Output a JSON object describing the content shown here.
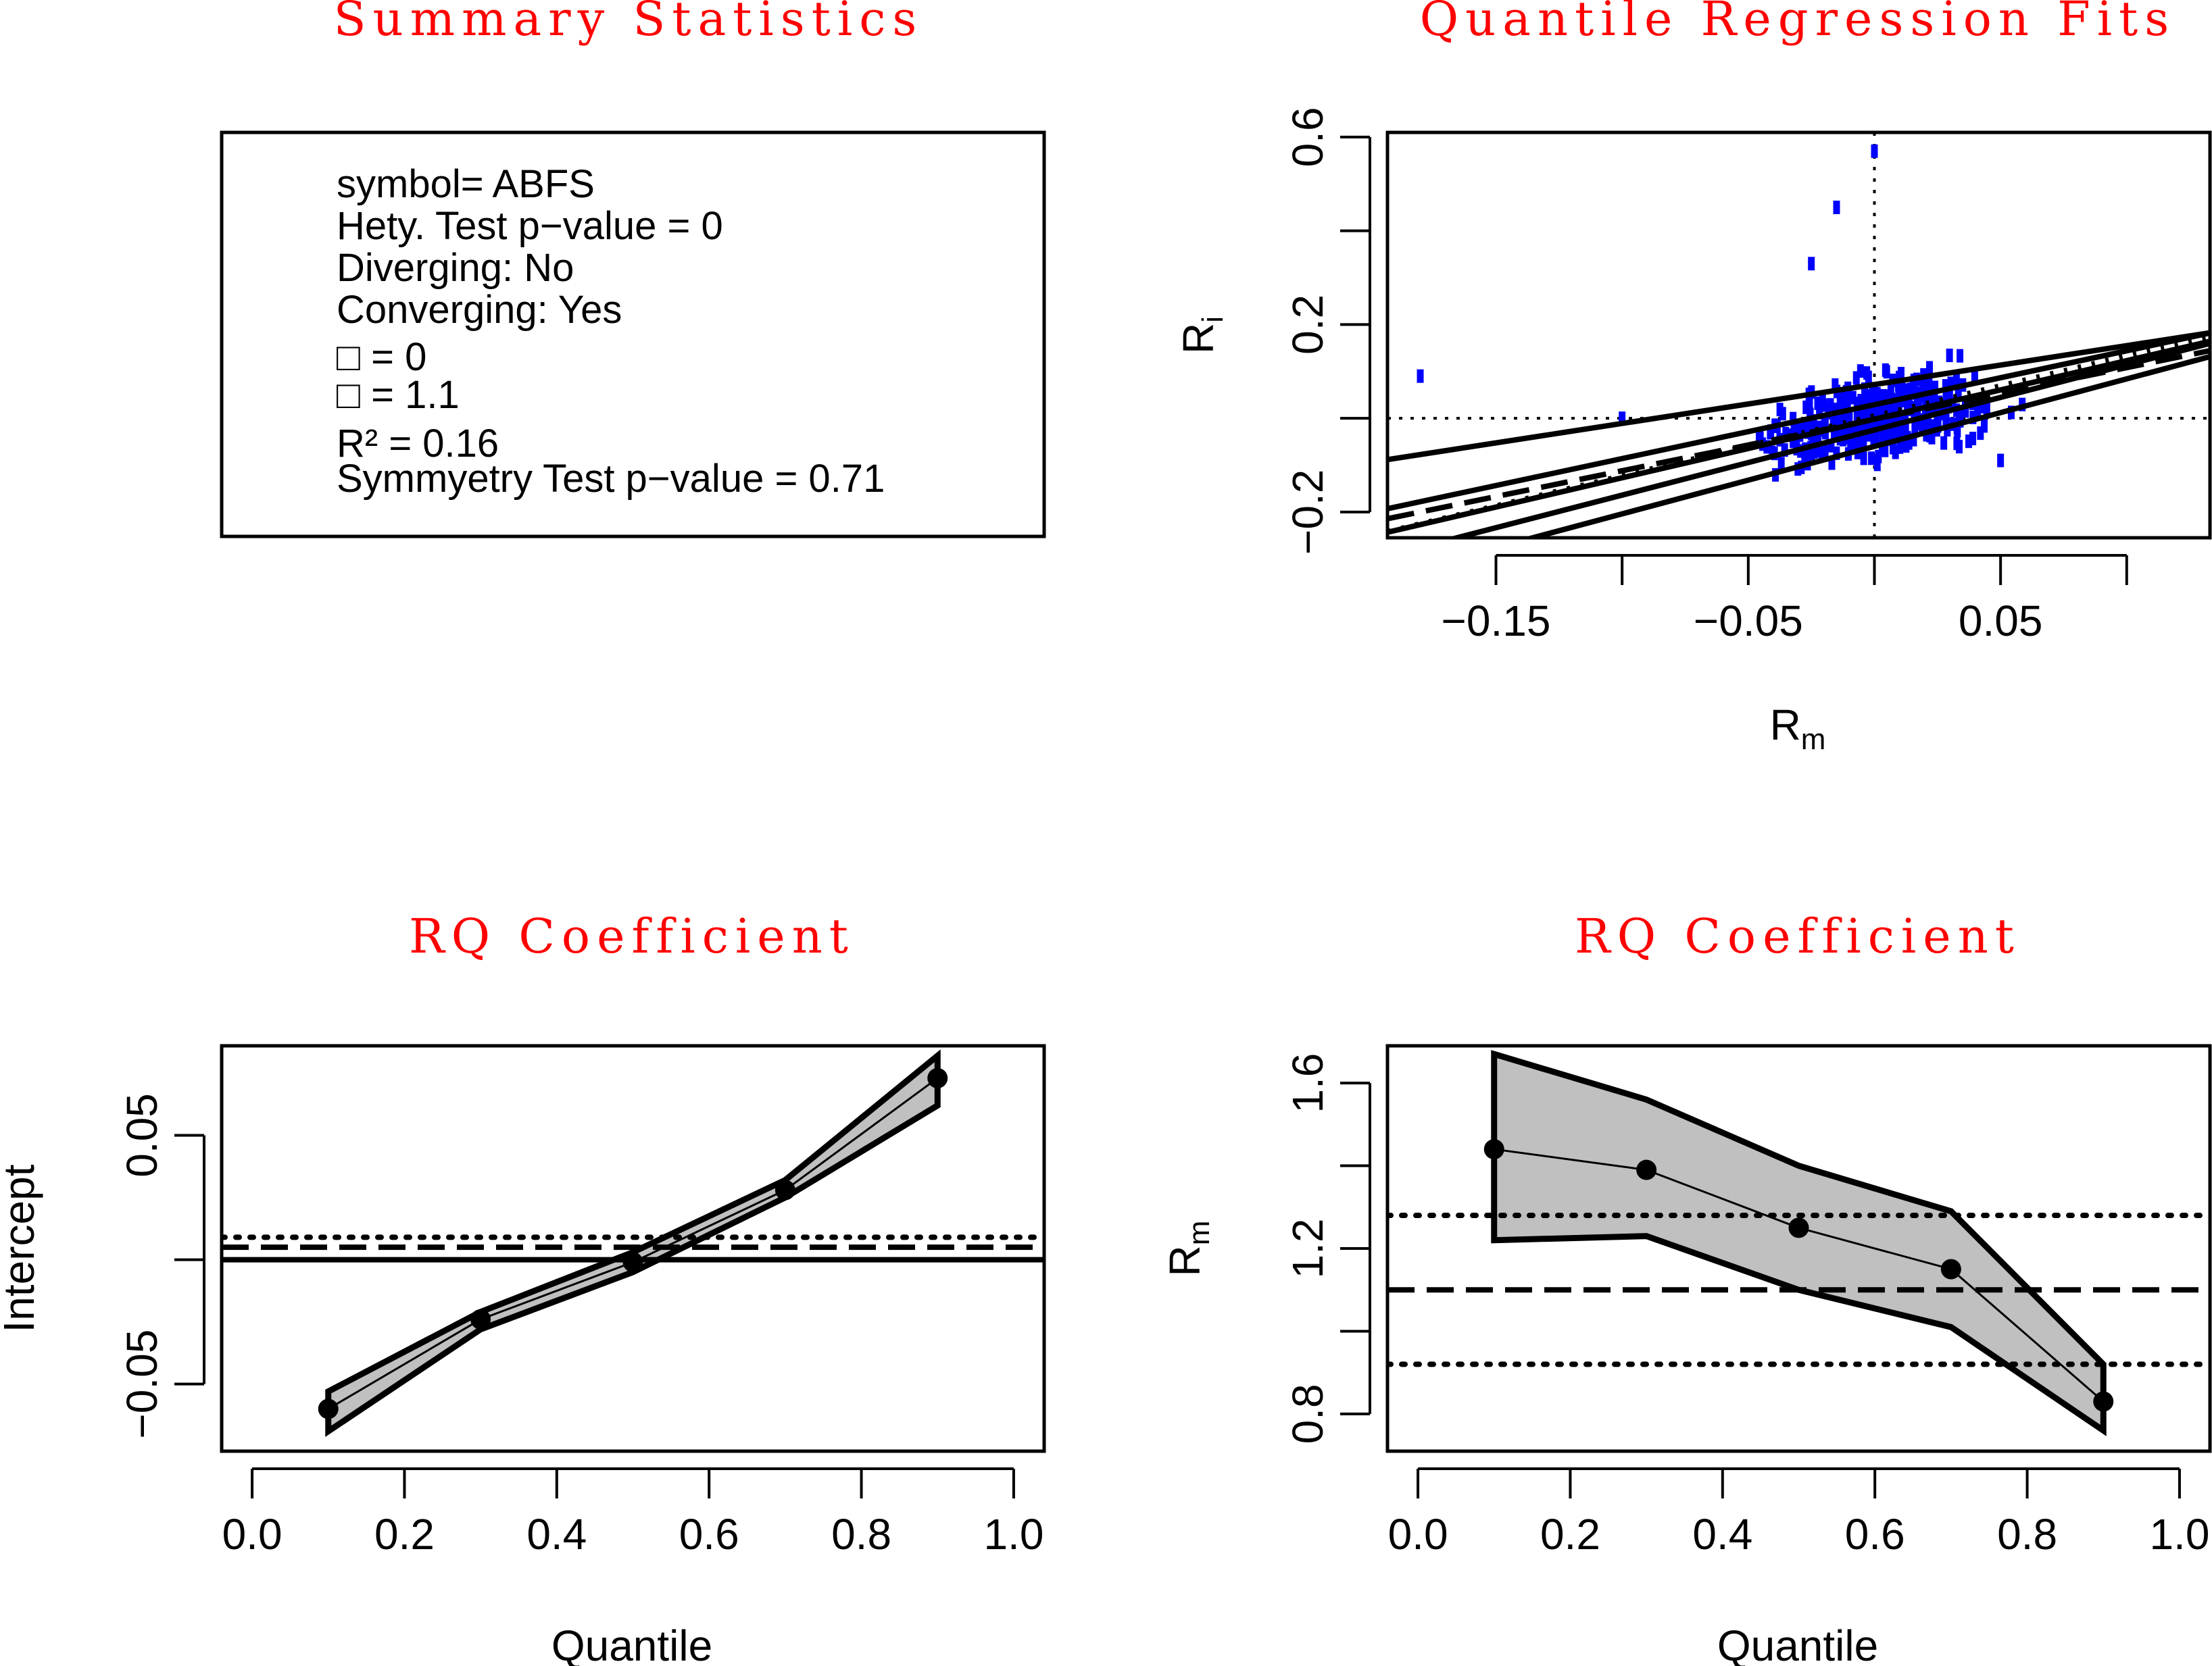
{
  "summary": {
    "title": "Summary Statistics",
    "lines": [
      "symbol= ABFS",
      "Hety. Test p−value = 0",
      "Diverging: No",
      "Converging: Yes",
      "□ = 0",
      "□ = 1.1",
      "R² = 0.16",
      "Symmyetry Test p−value = 0.71"
    ]
  },
  "colors": {
    "title": "#ff0000",
    "points": "#0000ff",
    "band": "#c0c0c0",
    "ink": "#000000"
  },
  "chart_data": [
    {
      "type": "scatter",
      "title": "Quantile Regression Fits",
      "xlabel": "R",
      "xlabel_sub": "m",
      "ylabel": "R",
      "ylabel_sub": "i",
      "xlim": [
        -0.193,
        0.133
      ],
      "ylim": [
        -0.255,
        0.61
      ],
      "xticks": [
        -0.15,
        -0.1,
        -0.05,
        0,
        0.05,
        0.1
      ],
      "xticklabels": [
        "−0.15",
        "",
        "−0.05",
        "",
        "0.05",
        ""
      ],
      "yticks": [
        -0.2,
        0,
        0.2,
        0.4,
        0.6
      ],
      "yticklabels": [
        "−0.2",
        "",
        "0.2",
        "",
        "0.6"
      ],
      "reference_lines": {
        "x": 0,
        "y": 0,
        "style": "dotted"
      },
      "fit_lines": [
        {
          "quantile": 0.1,
          "intercept": -0.06,
          "slope": 1.44,
          "style": "solid"
        },
        {
          "quantile": 0.3,
          "intercept": -0.025,
          "slope": 1.39,
          "style": "solid"
        },
        {
          "quantile": 0.5,
          "intercept": -0.002,
          "slope": 1.25,
          "style": "solid"
        },
        {
          "quantile": 0.7,
          "intercept": 0.029,
          "slope": 1.15,
          "style": "solid"
        },
        {
          "quantile": 0.9,
          "intercept": 0.072,
          "slope": 0.83,
          "style": "solid"
        },
        {
          "quantile": "ols",
          "intercept": -0.002,
          "slope": 1.1,
          "style": "dashed"
        },
        {
          "quantile": "ols-upper",
          "intercept": 0.005,
          "slope": 1.28,
          "style": "dotted"
        }
      ],
      "points_summary": {
        "count": 420,
        "x_center": 0.0,
        "x_spread": 0.03,
        "noted_points": [
          [
            -0.18,
            0.09
          ],
          [
            0.0,
            0.57
          ],
          [
            -0.015,
            0.45
          ],
          [
            -0.025,
            0.33
          ],
          [
            0.05,
            -0.09
          ],
          [
            -0.1,
            0.0
          ]
        ]
      }
    },
    {
      "type": "line",
      "title": "RQ Coefficient",
      "xlabel": "Quantile",
      "ylabel": "Intercept",
      "xlim": [
        -0.04,
        1.04
      ],
      "ylim": [
        -0.077,
        0.086
      ],
      "xticks": [
        0.0,
        0.2,
        0.4,
        0.6,
        0.8,
        1.0
      ],
      "xticklabels": [
        "0.0",
        "0.2",
        "0.4",
        "0.6",
        "0.8",
        "1.0"
      ],
      "yticks": [
        -0.05,
        0,
        0.05
      ],
      "yticklabels": [
        "−0.05",
        "",
        "0.05"
      ],
      "x": [
        0.1,
        0.3,
        0.5,
        0.7,
        0.9
      ],
      "series": [
        {
          "values": [
            -0.06,
            -0.024,
            -0.001,
            0.028,
            0.073
          ]
        }
      ],
      "band_lower": [
        -0.069,
        -0.028,
        -0.005,
        0.025,
        0.062
      ],
      "band_upper": [
        -0.053,
        -0.021,
        0.003,
        0.032,
        0.082
      ],
      "hlines": [
        {
          "y": 0.0,
          "style": "solid"
        },
        {
          "y": 0.005,
          "style": "dashed"
        },
        {
          "y": 0.009,
          "style": "dotted"
        }
      ]
    },
    {
      "type": "line",
      "title": "RQ Coefficient",
      "xlabel": "Quantile",
      "ylabel": "R",
      "ylabel_sub": "m",
      "xlim": [
        -0.04,
        1.04
      ],
      "ylim": [
        0.71,
        1.69
      ],
      "xticks": [
        0.0,
        0.2,
        0.4,
        0.6,
        0.8,
        1.0
      ],
      "xticklabels": [
        "0.0",
        "0.2",
        "0.4",
        "0.6",
        "0.8",
        "1.0"
      ],
      "yticks": [
        0.8,
        1.0,
        1.2,
        1.4,
        1.6
      ],
      "yticklabels": [
        "0.8",
        "",
        "1.2",
        "",
        "1.6"
      ],
      "x": [
        0.1,
        0.3,
        0.5,
        0.7,
        0.9
      ],
      "series": [
        {
          "values": [
            1.44,
            1.39,
            1.25,
            1.15,
            0.83
          ]
        }
      ],
      "band_lower": [
        1.22,
        1.23,
        1.1,
        1.01,
        0.76
      ],
      "band_upper": [
        1.67,
        1.56,
        1.4,
        1.29,
        0.92
      ],
      "hlines": [
        {
          "y": 1.1,
          "style": "dashed"
        },
        {
          "y": 1.28,
          "style": "dotted"
        },
        {
          "y": 0.92,
          "style": "dotted"
        }
      ]
    }
  ]
}
